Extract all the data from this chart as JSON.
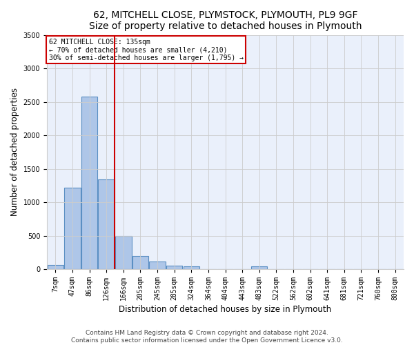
{
  "title_line1": "62, MITCHELL CLOSE, PLYMSTOCK, PLYMOUTH, PL9 9GF",
  "title_line2": "Size of property relative to detached houses in Plymouth",
  "xlabel": "Distribution of detached houses by size in Plymouth",
  "ylabel": "Number of detached properties",
  "bar_labels": [
    "7sqm",
    "47sqm",
    "86sqm",
    "126sqm",
    "166sqm",
    "205sqm",
    "245sqm",
    "285sqm",
    "324sqm",
    "364sqm",
    "404sqm",
    "443sqm",
    "483sqm",
    "522sqm",
    "562sqm",
    "602sqm",
    "641sqm",
    "681sqm",
    "721sqm",
    "760sqm",
    "800sqm"
  ],
  "bar_values": [
    60,
    1220,
    2580,
    1340,
    500,
    195,
    110,
    55,
    40,
    0,
    0,
    0,
    40,
    0,
    0,
    0,
    0,
    0,
    0,
    0,
    0
  ],
  "bar_color": "#aec6e8",
  "bar_edge_color": "#5a8fc3",
  "annotation_line0": "62 MITCHELL CLOSE: 135sqm",
  "annotation_line1": "← 70% of detached houses are smaller (4,210)",
  "annotation_line2": "30% of semi-detached houses are larger (1,795) →",
  "annotation_box_color": "#ffffff",
  "annotation_box_edge": "#cc0000",
  "vline_color": "#cc0000",
  "vline_x_index": 3.5,
  "ylim": [
    0,
    3500
  ],
  "yticks": [
    0,
    500,
    1000,
    1500,
    2000,
    2500,
    3000,
    3500
  ],
  "grid_color": "#cccccc",
  "bg_color": "#eaf0fb",
  "footer_line1": "Contains HM Land Registry data © Crown copyright and database right 2024.",
  "footer_line2": "Contains public sector information licensed under the Open Government Licence v3.0.",
  "title_fontsize": 10,
  "xlabel_fontsize": 8.5,
  "ylabel_fontsize": 8.5,
  "tick_fontsize": 7,
  "footer_fontsize": 6.5
}
